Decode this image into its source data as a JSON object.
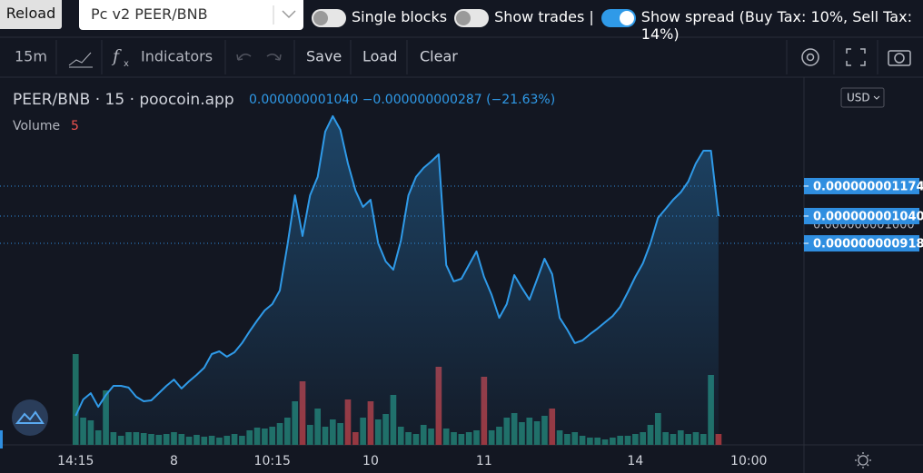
{
  "toolbar": {
    "reload": "Reload",
    "pair_select": "Pc v2 PEER/BNB",
    "toggles": [
      {
        "label": "Single blocks",
        "on": false
      },
      {
        "label": "Show trades |",
        "on": false
      },
      {
        "label": "Show spread (Buy Tax: 10%, Sell Tax: 14%)",
        "on": true
      }
    ]
  },
  "chart_toolbar": {
    "interval": "15m",
    "indicators": "Indicators",
    "save": "Save",
    "load": "Load",
    "clear": "Clear"
  },
  "chart_data": {
    "type": "line",
    "title": "PEER/BNB · 15 · poocoin.app",
    "legend_values": "0.000000001040 −0.000000000287 (−21.63%)",
    "currency": "USD",
    "volume_label": "Volume",
    "volume_value": 5,
    "color": "#2f9ae8",
    "values": [
      1.47e-10,
      2.2e-10,
      2.48e-10,
      1.87e-10,
      2.4e-10,
      2.81e-10,
      2.81e-10,
      2.73e-10,
      2.32e-10,
      2.12e-10,
      2.16e-10,
      2.48e-10,
      2.81e-10,
      3.09e-10,
      2.69e-10,
      3.01e-10,
      3.3e-10,
      3.62e-10,
      4.23e-10,
      4.35e-10,
      4.11e-10,
      4.31e-10,
      4.72e-10,
      5.24e-10,
      5.73e-10,
      6.18e-10,
      6.46e-10,
      7.07e-10,
      9.1e-10,
      1.133e-09,
      9.51e-10,
      1.133e-09,
      1.215e-09,
      1.418e-09,
      1.487e-09,
      1.426e-09,
      1.275e-09,
      1.154e-09,
      1.081e-09,
      1.113e-09,
      9.18e-10,
      8.37e-10,
      8e-10,
      9.3e-10,
      1.133e-09,
      1.215e-09,
      1.255e-09,
      1.284e-09,
      1.316e-09,
      8.21e-10,
      7.48e-10,
      7.6e-10,
      8.21e-10,
      8.82e-10,
      7.68e-10,
      6.87e-10,
      5.85e-10,
      6.46e-10,
      7.76e-10,
      7.19e-10,
      6.66e-10,
      7.56e-10,
      8.49e-10,
      7.8e-10,
      5.85e-10,
      5.32e-10,
      4.72e-10,
      4.84e-10,
      5.12e-10,
      5.37e-10,
      5.65e-10,
      5.93e-10,
      6.34e-10,
      6.99e-10,
      7.68e-10,
      8.29e-10,
      9.18e-10,
      1.032e-09,
      1.072e-09,
      1.113e-09,
      1.146e-09,
      1.194e-09,
      1.275e-09,
      1.332e-09,
      1.332e-09,
      1.04e-09
    ],
    "volume": {
      "ylim": [
        0,
        405
      ],
      "values": [
        100,
        30,
        27,
        16,
        60,
        14,
        10,
        14,
        14,
        13,
        12,
        11,
        12,
        14,
        12,
        9,
        11,
        9,
        10,
        8,
        10,
        12,
        10,
        16,
        19,
        18,
        20,
        24,
        30,
        48,
        70,
        22,
        40,
        20,
        28,
        24,
        50,
        14,
        30,
        48,
        28,
        34,
        55,
        20,
        14,
        12,
        22,
        18,
        86,
        18,
        14,
        12,
        14,
        16,
        75,
        16,
        20,
        30,
        35,
        25,
        30,
        26,
        32,
        40,
        16,
        12,
        14,
        10,
        8,
        8,
        6,
        8,
        10,
        10,
        12,
        14,
        22,
        35,
        14,
        12,
        16,
        12,
        14,
        12,
        77,
        12
      ],
      "colors": [
        "#1f6e64",
        "#1f6e64",
        "#1f6e64",
        "#1f6e64",
        "#1f6e64",
        "#1f6e64",
        "#1f6e64",
        "#1f6e64",
        "#1f6e64",
        "#1f6e64",
        "#1f6e64",
        "#1f6e64",
        "#1f6e64",
        "#1f6e64",
        "#1f6e64",
        "#1f6e64",
        "#1f6e64",
        "#1f6e64",
        "#1f6e64",
        "#1f6e64",
        "#1f6e64",
        "#1f6e64",
        "#1f6e64",
        "#1f6e64",
        "#1f6e64",
        "#1f6e64",
        "#1f6e64",
        "#1f6e64",
        "#1f6e64",
        "#1f6e64",
        "#9a353c",
        "#1f6e64",
        "#1f6e64",
        "#1f6e64",
        "#1f6e64",
        "#1f6e64",
        "#9a353c",
        "#9a353c",
        "#1f6e64",
        "#9a353c",
        "#1f6e64",
        "#1f6e64",
        "#1f6e64",
        "#1f6e64",
        "#1f6e64",
        "#1f6e64",
        "#1f6e64",
        "#1f6e64",
        "#9a353c",
        "#1f6e64",
        "#1f6e64",
        "#1f6e64",
        "#1f6e64",
        "#1f6e64",
        "#9a353c",
        "#1f6e64",
        "#1f6e64",
        "#1f6e64",
        "#1f6e64",
        "#1f6e64",
        "#1f6e64",
        "#1f6e64",
        "#1f6e64",
        "#9a353c",
        "#1f6e64",
        "#1f6e64",
        "#1f6e64",
        "#1f6e64",
        "#1f6e64",
        "#1f6e64",
        "#1f6e64",
        "#1f6e64",
        "#1f6e64",
        "#1f6e64",
        "#1f6e64",
        "#1f6e64",
        "#1f6e64",
        "#1f6e64",
        "#1f6e64",
        "#1f6e64",
        "#1f6e64",
        "#1f6e64",
        "#1f6e64",
        "#1f6e64",
        "#1f6e64",
        "#9a353c"
      ]
    },
    "xlim": [
      -10,
      96.3
    ],
    "xticks": [
      {
        "value": 0,
        "label": "14:15"
      },
      {
        "value": 13,
        "label": "8"
      },
      {
        "value": 26,
        "label": "10:15"
      },
      {
        "value": 39,
        "label": "10"
      },
      {
        "value": 54,
        "label": "11"
      },
      {
        "value": 74,
        "label": "14"
      },
      {
        "value": 89,
        "label": "10:00"
      }
    ],
    "ylim": [
      1.7e-11,
      1.661e-09
    ],
    "yticks": [
      {
        "value": 1e-09,
        "label": "0.000000001000"
      }
    ],
    "price_line_color": "#2f8ee0",
    "price_lines": [
      {
        "value": 1.174e-09,
        "label": "0.000000001174"
      },
      {
        "value": 1.04e-09,
        "label": "0.000000001040"
      },
      {
        "value": 9.18e-10,
        "label": "0.000000000918"
      }
    ]
  }
}
